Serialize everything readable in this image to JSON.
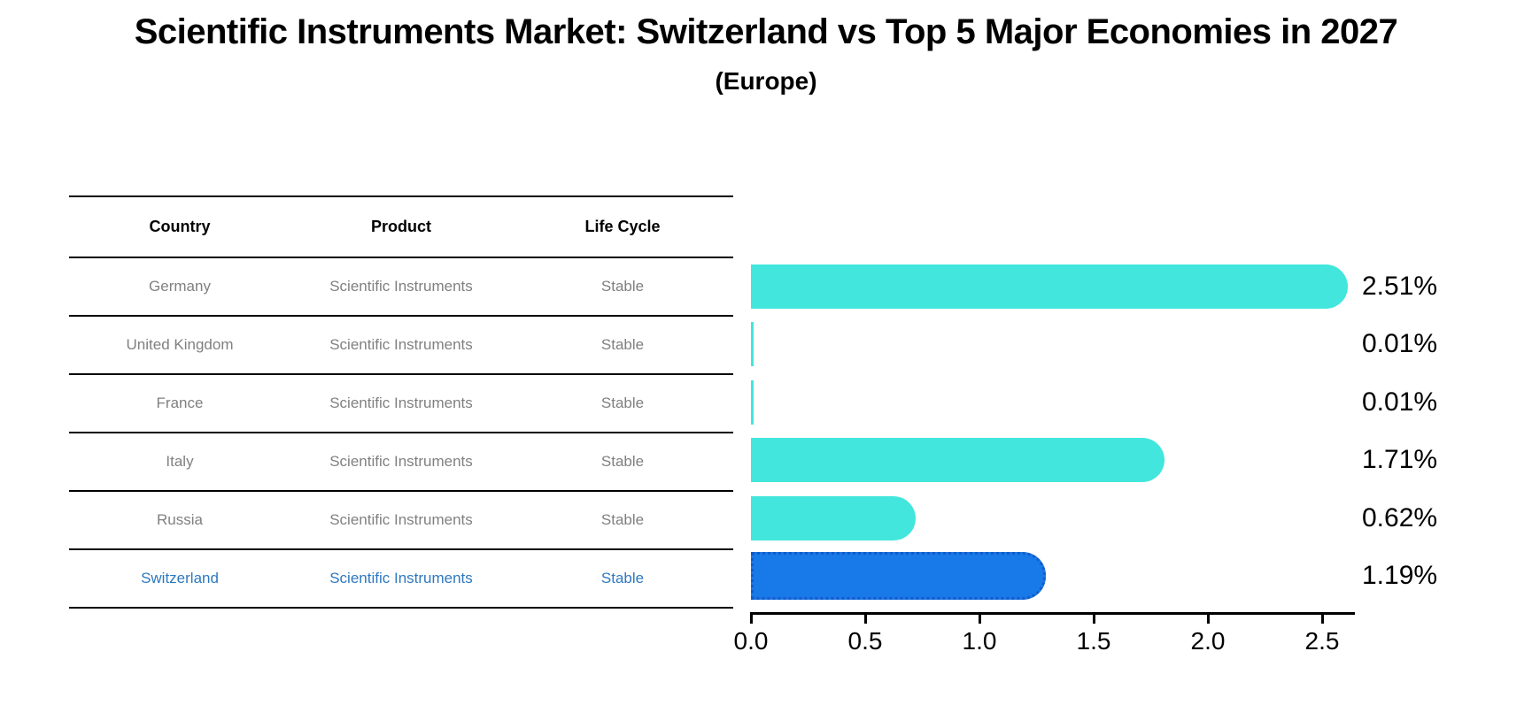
{
  "title": "Scientific Instruments Market: Switzerland vs Top 5 Major Economies in 2027",
  "subtitle": "(Europe)",
  "table": {
    "columns": [
      "Country",
      "Product",
      "Life Cycle"
    ],
    "rows": [
      {
        "country": "Germany",
        "product": "Scientific Instruments",
        "life_cycle": "Stable",
        "highlighted": false
      },
      {
        "country": "United Kingdom",
        "product": "Scientific Instruments",
        "life_cycle": "Stable",
        "highlighted": false
      },
      {
        "country": "France",
        "product": "Scientific Instruments",
        "life_cycle": "Stable",
        "highlighted": false
      },
      {
        "country": "Italy",
        "product": "Scientific Instruments",
        "life_cycle": "Stable",
        "highlighted": false
      },
      {
        "country": "Russia",
        "product": "Scientific Instruments",
        "life_cycle": "Stable",
        "highlighted": false
      },
      {
        "country": "Switzerland",
        "product": "Scientific Instruments",
        "life_cycle": "Stable",
        "highlighted": true
      }
    ]
  },
  "chart_data": {
    "type": "bar",
    "orientation": "horizontal",
    "title": "Scientific Instruments Market: Switzerland vs Top 5 Major Economies in 2027 (Europe)",
    "categories": [
      "Germany",
      "United Kingdom",
      "France",
      "Italy",
      "Russia",
      "Switzerland"
    ],
    "values": [
      2.51,
      0.01,
      0.01,
      1.71,
      0.62,
      1.19
    ],
    "value_labels": [
      "2.51%",
      "0.01%",
      "0.01%",
      "1.71%",
      "0.62%",
      "1.19%"
    ],
    "xlabel": "",
    "ylabel": "",
    "xlim": [
      0,
      2.64
    ],
    "xticks": [
      0,
      0.5,
      1.0,
      1.5,
      2.0,
      2.5
    ],
    "xtick_labels": [
      "0.0",
      "0.5",
      "1.0",
      "1.5",
      "2.0",
      "2.5"
    ],
    "grid": false,
    "legend": "none",
    "highlight_category": "Switzerland",
    "bar_color": "#42E6DC",
    "highlight_bar_color": "#1879E8",
    "highlight_bar_edge_color": "#155BC8"
  },
  "colors": {
    "title_text": "#000000",
    "table_header_text": "#000000",
    "table_body_text": "#808080",
    "highlight_row_text": "#2E78C0",
    "axis_line": "#000000"
  }
}
